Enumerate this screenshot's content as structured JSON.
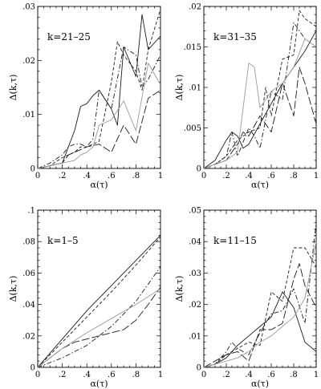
{
  "chart_data": [
    {
      "type": "line",
      "panel_label": "k=21–25",
      "xlabel": "α(τ)",
      "ylabel": "Δ(k,τ)",
      "xlim": [
        0,
        1
      ],
      "ylim": [
        0,
        0.03
      ],
      "x_ticks": [
        "0",
        ".2",
        ".4",
        ".6",
        ".8",
        "1"
      ],
      "y_ticks": [
        {
          "value": 0.03,
          "label": ".03"
        },
        {
          "value": 0.02,
          "label": ".02"
        },
        {
          "value": 0.01,
          "label": ".01"
        },
        {
          "value": 0,
          "label": "0"
        }
      ],
      "series": [
        {
          "style": "solid",
          "x": [
            0,
            0.1,
            0.2,
            0.3,
            0.35,
            0.4,
            0.45,
            0.5,
            0.6,
            0.65,
            0.7,
            0.8,
            0.85,
            0.9,
            1.0
          ],
          "y": [
            0,
            0.0005,
            0.001,
            0.007,
            0.0115,
            0.012,
            0.0135,
            0.0145,
            0.011,
            0.008,
            0.0225,
            0.017,
            0.0285,
            0.022,
            0.0245
          ]
        },
        {
          "style": "dash",
          "x": [
            0,
            0.1,
            0.2,
            0.3,
            0.35,
            0.4,
            0.45,
            0.5,
            0.6,
            0.65,
            0.7,
            0.8,
            0.85,
            0.9,
            1.0
          ],
          "y": [
            0,
            0.0005,
            0.002,
            0.003,
            0.004,
            0.004,
            0.0045,
            0.005,
            0.016,
            0.0235,
            0.021,
            0.018,
            0.0145,
            0.022,
            0.0295
          ]
        },
        {
          "style": "dashdot",
          "x": [
            0,
            0.1,
            0.2,
            0.25,
            0.3,
            0.35,
            0.4,
            0.45,
            0.5,
            0.6,
            0.7,
            0.8,
            0.85,
            0.9,
            1.0
          ],
          "y": [
            0,
            0.001,
            0.0025,
            0.004,
            0.0045,
            0.0045,
            0.004,
            0.0055,
            0.0145,
            0.011,
            0.0225,
            0.021,
            0.015,
            0.0165,
            0.021
          ]
        },
        {
          "style": "longdash",
          "x": [
            0,
            0.1,
            0.2,
            0.25,
            0.3,
            0.4,
            0.5,
            0.6,
            0.7,
            0.8,
            0.9,
            1.0
          ],
          "y": [
            0,
            0.0005,
            0.001,
            0.0025,
            0.003,
            0.004,
            0.0045,
            0.003,
            0.008,
            0.0045,
            0.013,
            0.0145
          ]
        },
        {
          "style": "gray",
          "x": [
            0,
            0.1,
            0.2,
            0.3,
            0.35,
            0.4,
            0.45,
            0.5,
            0.6,
            0.7,
            0.8,
            0.9,
            1.0
          ],
          "y": [
            0,
            0.0005,
            0.001,
            0.0015,
            0.0025,
            0.003,
            0.004,
            0.008,
            0.009,
            0.0125,
            0.007,
            0.0195,
            0.0155
          ]
        }
      ]
    },
    {
      "type": "line",
      "panel_label": "k=31–35",
      "xlabel": "α(τ)",
      "ylabel": "Δ(k,τ)",
      "xlim": [
        0,
        1
      ],
      "ylim": [
        0,
        0.02
      ],
      "x_ticks": [
        "0",
        ".2",
        ".4",
        ".6",
        ".8",
        "1"
      ],
      "y_ticks": [
        {
          "value": 0.02,
          "label": ".02"
        },
        {
          "value": 0.015,
          "label": ".015"
        },
        {
          "value": 0.01,
          "label": ".01"
        },
        {
          "value": 0.005,
          "label": ".005"
        },
        {
          "value": 0,
          "label": "0"
        }
      ],
      "series": [
        {
          "style": "solid",
          "x": [
            0,
            0.1,
            0.2,
            0.25,
            0.3,
            0.35,
            0.4,
            0.5,
            0.6,
            0.7,
            0.8,
            0.9,
            1.0
          ],
          "y": [
            0,
            0.001,
            0.0035,
            0.0045,
            0.004,
            0.0025,
            0.003,
            0.0055,
            0.008,
            0.0105,
            0.0125,
            0.0145,
            0.017
          ]
        },
        {
          "style": "dash",
          "x": [
            0,
            0.1,
            0.2,
            0.3,
            0.4,
            0.5,
            0.55,
            0.6,
            0.7,
            0.8,
            0.85,
            0.9,
            1.0
          ],
          "y": [
            0,
            0.0005,
            0.0015,
            0.0035,
            0.0045,
            0.005,
            0.01,
            0.0065,
            0.0135,
            0.014,
            0.0195,
            0.0185,
            0.0175
          ]
        },
        {
          "style": "dashdot",
          "x": [
            0,
            0.1,
            0.2,
            0.25,
            0.3,
            0.4,
            0.45,
            0.5,
            0.6,
            0.7,
            0.8,
            0.9,
            1.0
          ],
          "y": [
            0,
            0.0005,
            0.0015,
            0.0045,
            0.0015,
            0.005,
            0.004,
            0.0025,
            0.0095,
            0.0085,
            0.018,
            0.016,
            0.015
          ]
        },
        {
          "style": "longdash",
          "x": [
            0,
            0.1,
            0.2,
            0.3,
            0.35,
            0.4,
            0.5,
            0.6,
            0.7,
            0.8,
            0.85,
            0.9,
            1.0
          ],
          "y": [
            0,
            0.0005,
            0.001,
            0.003,
            0.0045,
            0.004,
            0.0065,
            0.0045,
            0.0105,
            0.0065,
            0.0125,
            0.0105,
            0.0055
          ]
        },
        {
          "style": "gray",
          "x": [
            0,
            0.1,
            0.2,
            0.3,
            0.4,
            0.45,
            0.5,
            0.6,
            0.7,
            0.8,
            0.9,
            1.0
          ],
          "y": [
            0,
            0.0005,
            0.001,
            0.002,
            0.013,
            0.0125,
            0.0075,
            0.0095,
            0.0105,
            0.0125,
            0.016,
            0.015
          ]
        }
      ]
    },
    {
      "type": "line",
      "panel_label": "k=1–5",
      "xlabel": "α(τ)",
      "ylabel": "Δ(k,τ)",
      "xlim": [
        0,
        1
      ],
      "ylim": [
        0,
        0.1
      ],
      "x_ticks": [
        "0",
        ".2",
        ".4",
        ".6",
        ".8",
        "1"
      ],
      "y_ticks": [
        {
          "value": 0.1,
          "label": ".1"
        },
        {
          "value": 0.08,
          "label": ".08"
        },
        {
          "value": 0.06,
          "label": ".06"
        },
        {
          "value": 0.04,
          "label": ".04"
        },
        {
          "value": 0.02,
          "label": ".02"
        },
        {
          "value": 0,
          "label": "0"
        }
      ],
      "series": [
        {
          "style": "solid",
          "x": [
            0,
            0.2,
            0.4,
            0.6,
            0.8,
            1.0
          ],
          "y": [
            0,
            0.018,
            0.036,
            0.052,
            0.068,
            0.084
          ]
        },
        {
          "style": "dash",
          "x": [
            0,
            0.2,
            0.4,
            0.6,
            0.8,
            1.0
          ],
          "y": [
            0,
            0.016,
            0.032,
            0.048,
            0.065,
            0.083
          ]
        },
        {
          "style": "dashdot",
          "x": [
            0,
            0.2,
            0.4,
            0.6,
            0.8,
            1.0
          ],
          "y": [
            0,
            0.006,
            0.014,
            0.026,
            0.042,
            0.064
          ]
        },
        {
          "style": "longdash",
          "x": [
            0,
            0.2,
            0.3,
            0.4,
            0.5,
            0.6,
            0.7,
            0.8,
            0.9,
            1.0
          ],
          "y": [
            0,
            0.012,
            0.016,
            0.018,
            0.02,
            0.022,
            0.024,
            0.03,
            0.04,
            0.051
          ]
        },
        {
          "style": "gray",
          "x": [
            0,
            0.2,
            0.4,
            0.6,
            0.8,
            1.0
          ],
          "y": [
            0,
            0.012,
            0.022,
            0.031,
            0.04,
            0.05
          ]
        }
      ]
    },
    {
      "type": "line",
      "panel_label": "k=11–15",
      "xlabel": "α(τ)",
      "ylabel": "Δ(k,τ)",
      "xlim": [
        0,
        1
      ],
      "ylim": [
        0,
        0.05
      ],
      "x_ticks": [
        "0",
        ".2",
        ".4",
        ".6",
        ".8",
        "1"
      ],
      "y_ticks": [
        {
          "value": 0.05,
          "label": ".05"
        },
        {
          "value": 0.04,
          "label": ".04"
        },
        {
          "value": 0.03,
          "label": ".03"
        },
        {
          "value": 0.02,
          "label": ".02"
        },
        {
          "value": 0.01,
          "label": ".01"
        },
        {
          "value": 0,
          "label": "0"
        }
      ],
      "series": [
        {
          "style": "solid",
          "x": [
            0,
            0.1,
            0.2,
            0.3,
            0.4,
            0.5,
            0.6,
            0.7,
            0.8,
            0.9,
            1.0
          ],
          "y": [
            0,
            0.001,
            0.003,
            0.007,
            0.01,
            0.013,
            0.016,
            0.024,
            0.019,
            0.008,
            0.005
          ]
        },
        {
          "style": "dash",
          "x": [
            0,
            0.1,
            0.2,
            0.3,
            0.4,
            0.5,
            0.6,
            0.7,
            0.8,
            0.85,
            0.9,
            1.0
          ],
          "y": [
            0,
            0.001,
            0.004,
            0.006,
            0.008,
            0.007,
            0.024,
            0.021,
            0.038,
            0.038,
            0.038,
            0.032
          ]
        },
        {
          "style": "dashdot",
          "x": [
            0,
            0.1,
            0.2,
            0.25,
            0.3,
            0.4,
            0.5,
            0.6,
            0.7,
            0.8,
            0.9,
            1.0
          ],
          "y": [
            0,
            0.001,
            0.005,
            0.008,
            0.006,
            0.004,
            0.011,
            0.017,
            0.018,
            0.025,
            0.014,
            0.046
          ]
        },
        {
          "style": "longdash",
          "x": [
            0,
            0.1,
            0.2,
            0.3,
            0.4,
            0.5,
            0.6,
            0.7,
            0.8,
            0.85,
            0.9,
            1.0
          ],
          "y": [
            0,
            0.002,
            0.004,
            0.005,
            0.002,
            0.012,
            0.012,
            0.014,
            0.028,
            0.033,
            0.026,
            0.019
          ]
        },
        {
          "style": "gray",
          "x": [
            0,
            0.1,
            0.2,
            0.3,
            0.4,
            0.5,
            0.6,
            0.7,
            0.8,
            0.9,
            1.0
          ],
          "y": [
            0,
            0.001,
            0.002,
            0.003,
            0.005,
            0.008,
            0.01,
            0.013,
            0.016,
            0.022,
            0.04
          ]
        }
      ]
    }
  ]
}
